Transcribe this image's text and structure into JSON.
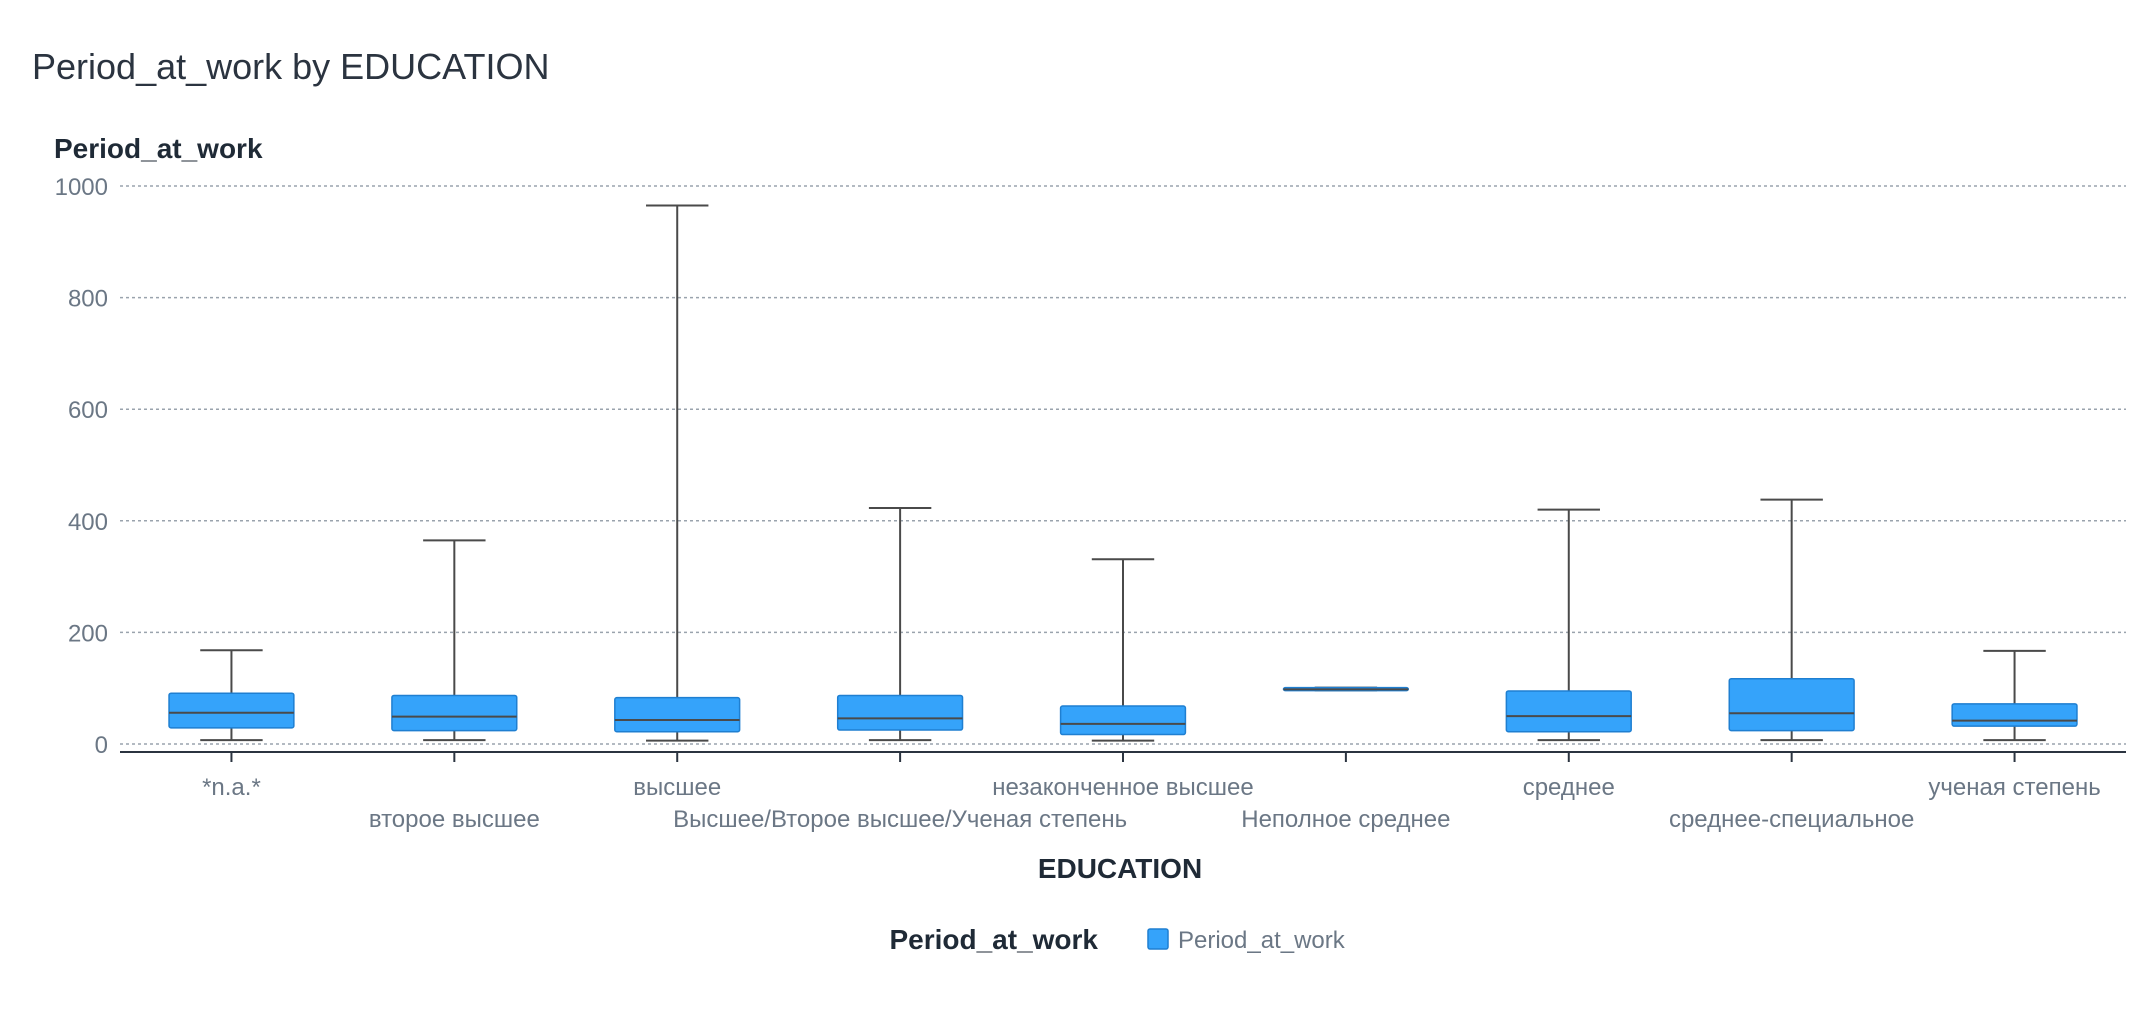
{
  "title": "Period_at_work by EDUCATION",
  "chart_data": {
    "type": "boxplot",
    "title": "Period_at_work by EDUCATION",
    "ylabel": "Period_at_work",
    "xlabel": "EDUCATION",
    "ylim": [
      0,
      1000
    ],
    "yticks": [
      0,
      200,
      400,
      600,
      800,
      1000
    ],
    "grid": true,
    "legend": {
      "title": "Period_at_work",
      "position": "bottom-center",
      "items": [
        "Period_at_work"
      ]
    },
    "colors": {
      "box": "#35a3fa",
      "box_stroke": "#1f7fd1",
      "whisker": "#4a4a4a",
      "grid": "#9aa3ad",
      "axis": "#2b3440"
    },
    "series": [
      {
        "name": "Period_at_work",
        "boxes": [
          {
            "category": "*n.a.*",
            "min": 7,
            "q1": 29,
            "median": 56,
            "q3": 91,
            "max": 168
          },
          {
            "category": "второе высшее",
            "min": 7,
            "q1": 24,
            "median": 49,
            "q3": 87,
            "max": 365
          },
          {
            "category": "высшее",
            "min": 6,
            "q1": 22,
            "median": 43,
            "q3": 83,
            "max": 965
          },
          {
            "category": "Высшее/Второе высшее/Ученая степень",
            "min": 7,
            "q1": 25,
            "median": 46,
            "q3": 87,
            "max": 423
          },
          {
            "category": "незаконченное высшее",
            "min": 6,
            "q1": 17,
            "median": 36,
            "q3": 68,
            "max": 331
          },
          {
            "category": "Неполное среднее",
            "min": 96,
            "q1": 96,
            "median": 98,
            "q3": 101,
            "max": 101
          },
          {
            "category": "среднее",
            "min": 7,
            "q1": 22,
            "median": 50,
            "q3": 95,
            "max": 420
          },
          {
            "category": "среднее-специальное",
            "min": 7,
            "q1": 24,
            "median": 55,
            "q3": 117,
            "max": 438
          },
          {
            "category": "ученая степень",
            "min": 7,
            "q1": 32,
            "median": 42,
            "q3": 72,
            "max": 167
          }
        ]
      }
    ]
  }
}
